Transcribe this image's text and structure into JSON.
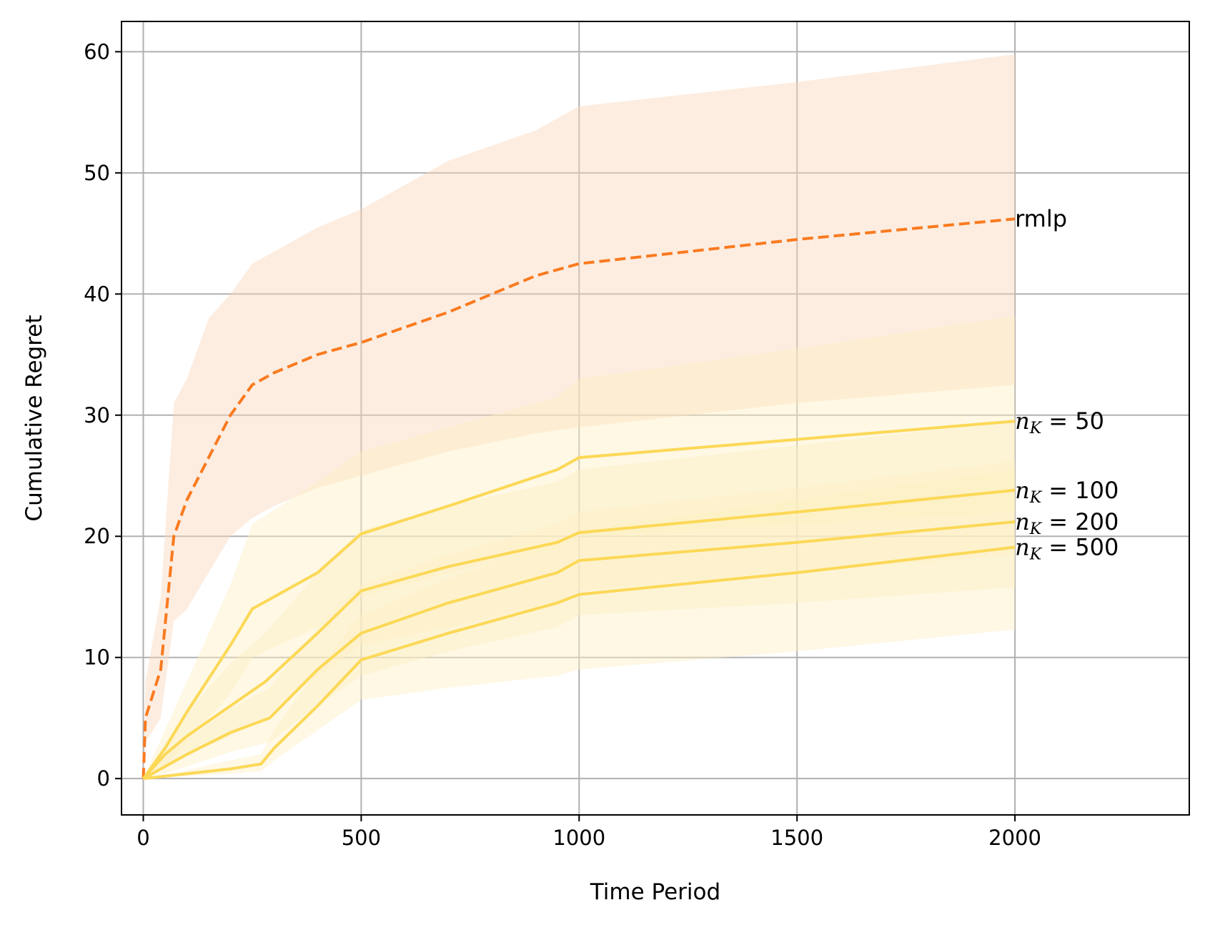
{
  "chart_data": {
    "type": "line",
    "xlabel": "Time Period",
    "ylabel": "Cumulative Regret",
    "xlim": [
      -50,
      2400
    ],
    "ylim": [
      -3,
      62.5
    ],
    "xticks": [
      0,
      500,
      1000,
      1500,
      2000
    ],
    "yticks": [
      0,
      10,
      20,
      30,
      40,
      50,
      60
    ],
    "xtick_labels": [
      "0",
      "500",
      "1000",
      "1500",
      "2000"
    ],
    "ytick_labels": [
      "0",
      "10",
      "20",
      "30",
      "40",
      "50",
      "60"
    ],
    "grid": true,
    "legend": "none (series labeled at line ends)",
    "series": [
      {
        "name": "rmlp",
        "label_parts": {
          "main": "rmlp",
          "sub": "",
          "rest": ""
        },
        "color": "#f97a1f",
        "band_color": "#fbd6bd",
        "style": "dashed",
        "x": [
          0,
          5,
          40,
          70,
          100,
          150,
          200,
          250,
          300,
          400,
          500,
          700,
          900,
          1000,
          1500,
          2000
        ],
        "y": [
          0,
          5,
          9,
          20,
          23,
          26.5,
          30,
          32.5,
          33.5,
          35,
          36,
          38.5,
          41.5,
          42.5,
          44.5,
          46.2
        ],
        "lower": [
          0,
          3,
          5,
          13,
          14,
          17,
          20,
          21.5,
          22.5,
          24,
          25,
          27,
          28.5,
          29,
          31,
          32.5
        ],
        "upper": [
          0,
          8,
          15,
          31,
          33,
          38,
          40,
          42.5,
          43.5,
          45.5,
          47,
          51,
          53.5,
          55.5,
          57.5,
          59.8
        ]
      },
      {
        "name": "n_K = 50",
        "label_parts": {
          "main": "n",
          "sub": "K",
          "rest": " = 50"
        },
        "color": "#fcd856",
        "band_color": "#fdf0c4",
        "style": "solid",
        "x": [
          0,
          50,
          100,
          200,
          250,
          400,
          500,
          700,
          950,
          1000,
          1500,
          2000
        ],
        "y": [
          0,
          2.5,
          5.5,
          11,
          14,
          17,
          20.2,
          22.5,
          25.5,
          26.5,
          28,
          29.5
        ],
        "lower": [
          0,
          1,
          3,
          7,
          10,
          12.5,
          15,
          17,
          19,
          20,
          21,
          22
        ],
        "upper": [
          0,
          4,
          8,
          16,
          21,
          24.5,
          27,
          29,
          31.5,
          33,
          35.5,
          38.2
        ]
      },
      {
        "name": "n_K = 100",
        "label_parts": {
          "main": "n",
          "sub": "K",
          "rest": " = 100"
        },
        "color": "#fcd856",
        "band_color": "#fdf0c4",
        "style": "solid",
        "x": [
          0,
          50,
          100,
          200,
          280,
          400,
          500,
          700,
          950,
          1000,
          1500,
          2000
        ],
        "y": [
          0,
          2,
          3.5,
          6,
          8,
          12,
          15.5,
          17.5,
          19.5,
          20.3,
          22,
          23.8
        ],
        "lower": [
          0,
          0.8,
          2,
          3.5,
          5,
          8.5,
          11,
          12.5,
          14.5,
          15.5,
          17,
          18.5
        ],
        "upper": [
          0,
          3,
          5.5,
          9.5,
          12,
          17,
          20.5,
          22.5,
          24.5,
          25.5,
          27.5,
          29.5
        ]
      },
      {
        "name": "n_K = 200",
        "label_parts": {
          "main": "n",
          "sub": "K",
          "rest": " = 200"
        },
        "color": "#fcd856",
        "band_color": "#fdf0c4",
        "style": "solid",
        "x": [
          0,
          50,
          100,
          200,
          290,
          400,
          500,
          700,
          950,
          1000,
          1500,
          2000
        ],
        "y": [
          0,
          1,
          2,
          3.8,
          5,
          9,
          12,
          14.5,
          17,
          18,
          19.5,
          21.2
        ],
        "lower": [
          0,
          0.4,
          1,
          2.2,
          3,
          6,
          8.5,
          10.5,
          12.5,
          13.5,
          14.5,
          15.8
        ],
        "upper": [
          0,
          1.8,
          3.2,
          5.8,
          7.5,
          12.5,
          16,
          18.5,
          21,
          22,
          24,
          26.2
        ]
      },
      {
        "name": "n_K = 500",
        "label_parts": {
          "main": "n",
          "sub": "K",
          "rest": " = 500"
        },
        "color": "#fcd856",
        "band_color": "#fdf0c4",
        "style": "solid",
        "x": [
          0,
          100,
          200,
          270,
          300,
          400,
          500,
          700,
          950,
          1000,
          1500,
          2000
        ],
        "y": [
          0,
          0.4,
          0.8,
          1.2,
          2.5,
          6,
          9.8,
          12,
          14.5,
          15.2,
          17,
          19.1
        ],
        "lower": [
          0,
          0.2,
          0.4,
          0.6,
          1.5,
          4,
          6.5,
          7.5,
          8.5,
          9,
          10.5,
          12.3
        ],
        "upper": [
          0,
          0.7,
          1.5,
          2,
          4,
          9,
          13.5,
          16.5,
          19.5,
          20.5,
          23,
          25.5
        ]
      }
    ]
  }
}
